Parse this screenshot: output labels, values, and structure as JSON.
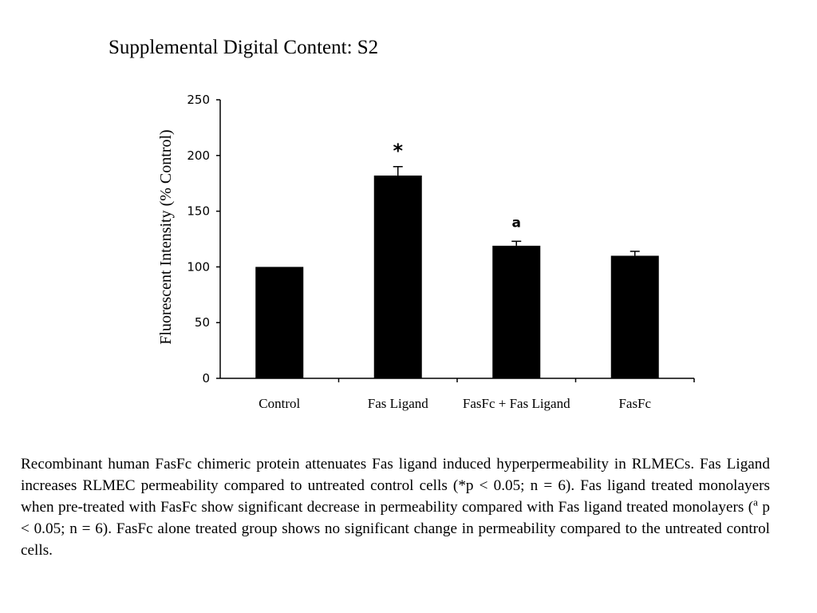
{
  "title": "Supplemental Digital Content: S2",
  "chart_data": {
    "type": "bar",
    "categories": [
      "Control",
      "Fas Ligand",
      "FasFc + Fas Ligand",
      "FasFc"
    ],
    "values": [
      100,
      182,
      119,
      110
    ],
    "errors": [
      0,
      8,
      4,
      4
    ],
    "annotations": [
      "",
      "*",
      "a",
      ""
    ],
    "ylabel": "Fluorescent Intensity (% Control)",
    "xlabel": "",
    "ylim": [
      0,
      250
    ],
    "yticks": [
      0,
      50,
      100,
      150,
      200,
      250
    ],
    "bar_color": "#000000",
    "grid": false,
    "legend": "none"
  },
  "caption": {
    "part1": "Recombinant human FasFc chimeric protein attenuates Fas ligand induced hyperpermeability in RLMECs. Fas Ligand increases RLMEC permeability compared to untreated control cells (*p < 0.05; n = 6). Fas ligand treated monolayers when pre-treated with FasFc show significant decrease in permeability compared with Fas ligand treated monolayers (",
    "sup": "a",
    "part2": " p < 0.05; n = 6). FasFc alone treated group shows no significant change in permeability compared to the untreated control cells."
  }
}
